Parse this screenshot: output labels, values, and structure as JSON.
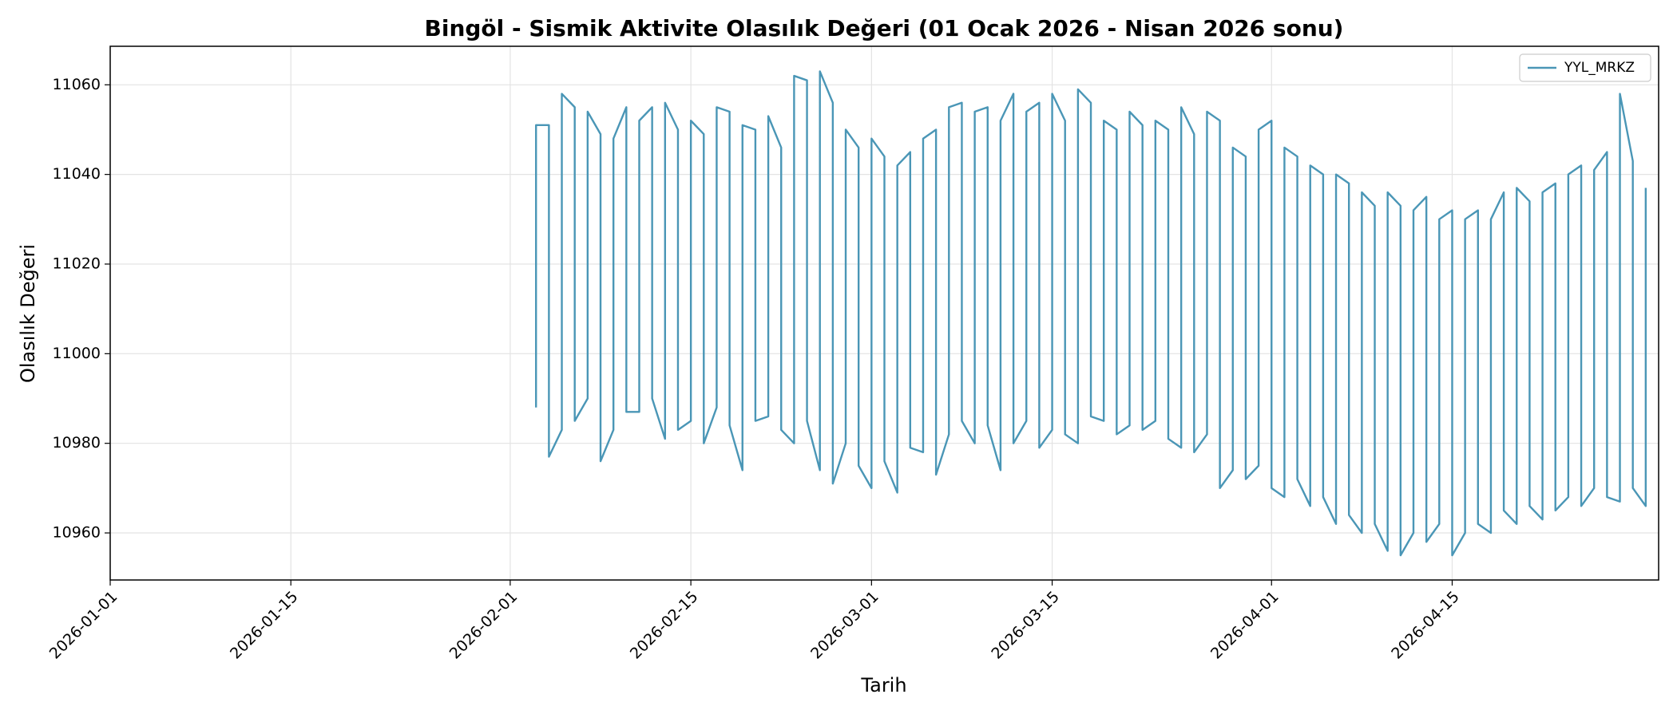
{
  "chart_data": {
    "type": "line",
    "title": "Bingöl - Sismik Aktivite Olasılık Değeri (01 Ocak 2026 - Nisan 2026 sonu)",
    "xlabel": "Tarih",
    "ylabel": "Olasılık Değeri",
    "x": [
      "2026-02-03",
      "2026-02-03",
      "2026-02-04",
      "2026-02-04",
      "2026-02-05",
      "2026-02-05",
      "2026-02-06",
      "2026-02-06",
      "2026-02-07",
      "2026-02-07",
      "2026-02-08",
      "2026-02-08",
      "2026-02-09",
      "2026-02-09",
      "2026-02-10",
      "2026-02-10",
      "2026-02-11",
      "2026-02-11",
      "2026-02-12",
      "2026-02-12",
      "2026-02-13",
      "2026-02-13",
      "2026-02-14",
      "2026-02-14",
      "2026-02-15",
      "2026-02-15",
      "2026-02-16",
      "2026-02-16",
      "2026-02-17",
      "2026-02-17",
      "2026-02-18",
      "2026-02-18",
      "2026-02-19",
      "2026-02-19",
      "2026-02-20",
      "2026-02-20",
      "2026-02-21",
      "2026-02-21",
      "2026-02-22",
      "2026-02-22",
      "2026-02-23",
      "2026-02-23",
      "2026-02-24",
      "2026-02-24",
      "2026-02-25",
      "2026-02-25",
      "2026-02-26",
      "2026-02-26",
      "2026-02-27",
      "2026-02-27",
      "2026-02-28",
      "2026-02-28",
      "2026-03-01",
      "2026-03-01",
      "2026-03-02",
      "2026-03-02",
      "2026-03-03",
      "2026-03-03",
      "2026-03-04",
      "2026-03-04",
      "2026-03-05",
      "2026-03-05",
      "2026-03-06",
      "2026-03-06",
      "2026-03-07",
      "2026-03-07",
      "2026-03-08",
      "2026-03-08",
      "2026-03-09",
      "2026-03-09",
      "2026-03-10",
      "2026-03-10",
      "2026-03-11",
      "2026-03-11",
      "2026-03-12",
      "2026-03-12",
      "2026-03-13",
      "2026-03-13",
      "2026-03-14",
      "2026-03-14",
      "2026-03-15",
      "2026-03-15",
      "2026-03-16",
      "2026-03-16",
      "2026-03-17",
      "2026-03-17",
      "2026-03-18",
      "2026-03-18",
      "2026-03-19",
      "2026-03-19",
      "2026-03-20",
      "2026-03-20",
      "2026-03-21",
      "2026-03-21",
      "2026-03-22",
      "2026-03-22",
      "2026-03-23",
      "2026-03-23",
      "2026-03-24",
      "2026-03-24",
      "2026-03-25",
      "2026-03-25",
      "2026-03-26",
      "2026-03-26",
      "2026-03-27",
      "2026-03-27",
      "2026-03-28",
      "2026-03-28",
      "2026-03-29",
      "2026-03-29",
      "2026-03-30",
      "2026-03-30",
      "2026-03-31",
      "2026-03-31",
      "2026-04-01",
      "2026-04-01",
      "2026-04-02",
      "2026-04-02",
      "2026-04-03",
      "2026-04-03",
      "2026-04-04",
      "2026-04-04",
      "2026-04-05",
      "2026-04-05",
      "2026-04-06",
      "2026-04-06",
      "2026-04-07",
      "2026-04-07",
      "2026-04-08",
      "2026-04-08",
      "2026-04-09",
      "2026-04-09",
      "2026-04-10",
      "2026-04-10",
      "2026-04-11",
      "2026-04-11",
      "2026-04-12",
      "2026-04-12",
      "2026-04-13",
      "2026-04-13",
      "2026-04-14",
      "2026-04-14",
      "2026-04-15",
      "2026-04-15",
      "2026-04-16",
      "2026-04-16",
      "2026-04-17",
      "2026-04-17",
      "2026-04-18",
      "2026-04-18",
      "2026-04-19",
      "2026-04-19",
      "2026-04-20",
      "2026-04-20",
      "2026-04-21",
      "2026-04-21",
      "2026-04-22",
      "2026-04-22",
      "2026-04-23",
      "2026-04-23",
      "2026-04-24",
      "2026-04-24",
      "2026-04-25",
      "2026-04-25",
      "2026-04-26",
      "2026-04-26",
      "2026-04-27",
      "2026-04-27",
      "2026-04-28",
      "2026-04-28",
      "2026-04-29",
      "2026-04-29",
      "2026-04-30",
      "2026-04-30"
    ],
    "series": [
      {
        "name": "YYL_MRKZ",
        "color": "#4a96b6",
        "values": [
          10988,
          11051,
          11051,
          10977,
          10983,
          11058,
          11055,
          10985,
          10990,
          11054,
          11049,
          10976,
          10983,
          11048,
          11055,
          10987,
          10987,
          11052,
          11055,
          10990,
          10981,
          11056,
          11050,
          10983,
          10985,
          11052,
          11049,
          10980,
          10988,
          11055,
          11054,
          10984,
          10974,
          11051,
          11050,
          10985,
          10986,
          11053,
          11046,
          10983,
          10980,
          11062,
          11061,
          10985,
          10974,
          11063,
          11056,
          10971,
          10980,
          11050,
          11046,
          10975,
          10970,
          11048,
          11044,
          10976,
          10969,
          11042,
          11045,
          10979,
          10978,
          11048,
          11050,
          10973,
          10982,
          11055,
          11056,
          10985,
          10980,
          11054,
          11055,
          10984,
          10974,
          11052,
          11058,
          10980,
          10985,
          11054,
          11056,
          10979,
          10983,
          11058,
          11052,
          10982,
          10980,
          11059,
          11056,
          10986,
          10985,
          11052,
          11050,
          10982,
          10984,
          11054,
          11051,
          10983,
          10985,
          11052,
          11050,
          10981,
          10979,
          11055,
          11049,
          10978,
          10982,
          11054,
          11052,
          10970,
          10974,
          11046,
          11044,
          10972,
          10975,
          11050,
          11052,
          10970,
          10968,
          11046,
          11044,
          10972,
          10966,
          11042,
          11040,
          10968,
          10962,
          11040,
          11038,
          10964,
          10960,
          11036,
          11033,
          10962,
          10956,
          11036,
          11033,
          10955,
          10960,
          11032,
          11035,
          10958,
          10962,
          11030,
          11032,
          10955,
          10960,
          11030,
          11032,
          10962,
          10960,
          11030,
          11036,
          10965,
          10962,
          11037,
          11034,
          10966,
          10963,
          11036,
          11038,
          10965,
          10968,
          11040,
          11042,
          10966,
          10970,
          11041,
          11045,
          10968,
          10967,
          11058,
          11043,
          10970,
          10966,
          11037
        ]
      }
    ],
    "xlim": [
      "2026-01-01",
      "2026-05-01"
    ],
    "xticks": [
      "2026-01-01",
      "2026-01-15",
      "2026-02-01",
      "2026-02-15",
      "2026-03-01",
      "2026-03-15",
      "2026-04-01",
      "2026-04-15"
    ],
    "ylim": [
      10949.5,
      11068.6
    ],
    "yticks": [
      10960,
      10980,
      11000,
      11020,
      11040,
      11060
    ],
    "grid": true,
    "legend": "upper right"
  }
}
